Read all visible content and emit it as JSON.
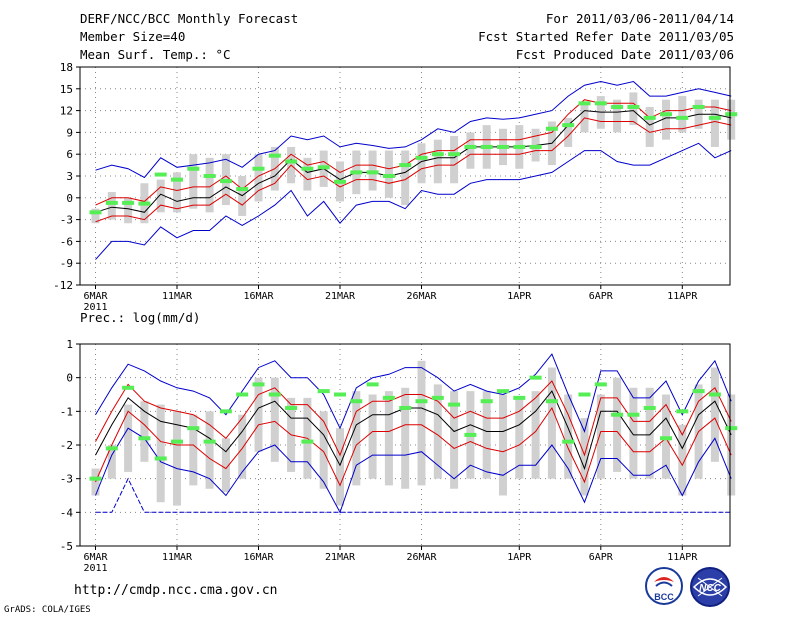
{
  "header": {
    "title": "DERF/NCC/BCC Monthly Forecast",
    "member_size": "Member Size=40",
    "variable": "Mean Surf. Temp.: °C",
    "period": "For 2011/03/06-2011/04/14",
    "start_date": "Fcst Started Refer Date 2011/03/05",
    "produced_date": "Fcst Produced Date 2011/03/06"
  },
  "footer": {
    "url": "http://cmdp.ncc.cma.gov.cn",
    "credit": "GrADS: COLA/IGES",
    "logo_left_text": "BCC",
    "logo_right_text": "NCC"
  },
  "colors": {
    "envelope": "#0000cc",
    "spread": "#dd0000",
    "mean": "#000000",
    "bar": "#d0d0d0",
    "observed": "#55ee55",
    "grid": "#888888"
  },
  "chart_data": [
    {
      "type": "box",
      "title": "Mean Surf. Temp.: °C",
      "ylim": [
        -12,
        18
      ],
      "yticks": [
        "18",
        "15",
        "12",
        "9",
        "6",
        "3",
        "0",
        "-3",
        "-6",
        "-9",
        "-12"
      ],
      "x_ticks": [
        {
          "day": 1,
          "label": "6MAR",
          "sublabel": "2011"
        },
        {
          "day": 6,
          "label": "11MAR"
        },
        {
          "day": 11,
          "label": "16MAR"
        },
        {
          "day": 16,
          "label": "21MAR"
        },
        {
          "day": 21,
          "label": "26MAR"
        },
        {
          "day": 27,
          "label": "1APR"
        },
        {
          "day": 32,
          "label": "6APR"
        },
        {
          "day": 37,
          "label": "11APR"
        }
      ],
      "days": 40,
      "max": [
        3.8,
        4.5,
        4.0,
        2.8,
        5.5,
        4.2,
        4.5,
        4.8,
        5.3,
        4.2,
        6.0,
        6.5,
        8.5,
        8.0,
        8.5,
        7.0,
        7.5,
        7.2,
        6.8,
        7.0,
        8.0,
        9.5,
        9.0,
        10.5,
        11.0,
        10.8,
        11.0,
        11.5,
        12.0,
        14.0,
        15.5,
        16.0,
        15.5,
        16.0,
        14.0,
        14.0,
        14.5,
        15.0,
        14.5,
        14.0
      ],
      "upper": [
        -1.0,
        0.0,
        0.0,
        -0.5,
        1.5,
        1.0,
        1.5,
        1.5,
        3.0,
        1.2,
        3.0,
        4.0,
        6.0,
        4.5,
        5.0,
        3.5,
        4.5,
        4.5,
        4.0,
        4.5,
        6.0,
        6.5,
        6.5,
        8.0,
        8.0,
        8.0,
        8.0,
        8.5,
        9.0,
        11.5,
        13.5,
        13.0,
        13.0,
        13.0,
        11.0,
        12.0,
        12.0,
        12.5,
        12.5,
        12.0
      ],
      "mean": [
        -2.0,
        -1.3,
        -1.5,
        -2.0,
        0.5,
        -0.5,
        0.0,
        0.0,
        1.5,
        0.3,
        2.0,
        3.0,
        5.3,
        3.5,
        4.0,
        2.5,
        3.5,
        3.5,
        3.0,
        3.5,
        5.0,
        5.5,
        5.5,
        7.0,
        7.0,
        7.0,
        7.0,
        7.2,
        7.5,
        10.0,
        12.0,
        11.8,
        11.8,
        12.0,
        10.0,
        11.0,
        11.0,
        11.5,
        11.5,
        11.0
      ],
      "lower": [
        -3.3,
        -2.5,
        -2.5,
        -3.0,
        -1.0,
        -1.5,
        -1.0,
        -1.0,
        0.5,
        -1.0,
        1.0,
        2.0,
        4.5,
        2.5,
        3.0,
        1.5,
        2.5,
        2.5,
        2.0,
        2.5,
        4.0,
        4.5,
        4.5,
        6.0,
        6.0,
        6.0,
        6.0,
        6.5,
        6.5,
        8.5,
        11.0,
        10.5,
        10.5,
        10.5,
        9.0,
        9.5,
        9.5,
        10.0,
        10.5,
        10.0
      ],
      "min": [
        -8.5,
        -6.0,
        -6.0,
        -6.5,
        -4.0,
        -5.5,
        -4.5,
        -4.5,
        -2.5,
        -3.8,
        -2.5,
        -1.0,
        1.0,
        -2.5,
        -0.5,
        -3.5,
        -1.0,
        -0.5,
        -0.5,
        -1.5,
        1.0,
        0.5,
        0.5,
        2.0,
        2.5,
        2.5,
        2.5,
        3.0,
        3.5,
        5.0,
        6.5,
        6.5,
        5.0,
        4.5,
        4.5,
        5.5,
        6.5,
        7.5,
        5.5,
        6.5
      ],
      "bar_top": [
        -1.5,
        0.8,
        0.0,
        2.0,
        2.5,
        3.5,
        6.0,
        5.5,
        6.0,
        3.0,
        6.0,
        7.0,
        7.0,
        5.5,
        6.5,
        5.0,
        6.5,
        6.5,
        6.5,
        6.5,
        7.5,
        8.0,
        8.5,
        9.0,
        10.0,
        9.5,
        10.0,
        9.5,
        10.5,
        11.0,
        13.0,
        14.0,
        13.5,
        14.5,
        12.5,
        13.5,
        14.0,
        13.5,
        13.5,
        13.5
      ],
      "bar_bottom": [
        -3.5,
        -3.0,
        -3.5,
        -3.5,
        -2.0,
        -2.0,
        -1.5,
        -2.0,
        -1.0,
        -2.5,
        -0.5,
        1.0,
        2.0,
        1.0,
        1.5,
        -0.5,
        0.5,
        1.0,
        0.0,
        -1.0,
        2.0,
        2.0,
        2.0,
        4.0,
        4.0,
        4.5,
        4.0,
        5.0,
        4.5,
        7.0,
        9.0,
        9.5,
        9.0,
        10.0,
        7.0,
        8.0,
        9.0,
        9.5,
        7.0,
        8.0
      ],
      "observed": [
        -2.0,
        -0.7,
        -0.7,
        -0.8,
        3.2,
        2.5,
        4.0,
        3.0,
        2.3,
        1.2,
        4.0,
        5.8,
        5.0,
        4.0,
        4.2,
        2.2,
        3.5,
        3.5,
        3.0,
        4.5,
        5.5,
        6.0,
        6.0,
        7.0,
        7.0,
        7.0,
        7.0,
        7.0,
        9.5,
        10.0,
        13.0,
        13.0,
        12.5,
        12.5,
        11.0,
        11.5,
        11.0,
        12.5,
        11.0,
        11.5
      ]
    },
    {
      "type": "box",
      "title": "Prec.: log(mm/d)",
      "ylim": [
        -5,
        1
      ],
      "yticks": [
        "1",
        "0",
        "-1",
        "-2",
        "-3",
        "-4",
        "-5"
      ],
      "x_ticks": [
        {
          "day": 1,
          "label": "6MAR",
          "sublabel": "2011"
        },
        {
          "day": 6,
          "label": "11MAR"
        },
        {
          "day": 11,
          "label": "16MAR"
        },
        {
          "day": 16,
          "label": "21MAR"
        },
        {
          "day": 21,
          "label": "26MAR"
        },
        {
          "day": 27,
          "label": "1APR"
        },
        {
          "day": 32,
          "label": "6APR"
        },
        {
          "day": 37,
          "label": "11APR"
        }
      ],
      "days": 40,
      "max": [
        -1.1,
        -0.3,
        0.4,
        0.2,
        -0.1,
        -0.3,
        -0.4,
        -0.6,
        -1.1,
        -0.4,
        0.3,
        0.5,
        0.0,
        0.0,
        -0.5,
        -1.5,
        -0.3,
        0.0,
        0.1,
        0.3,
        0.3,
        0.0,
        -0.4,
        -0.2,
        -0.4,
        -0.5,
        -0.3,
        0.1,
        0.7,
        -0.5,
        -1.6,
        0.2,
        0.2,
        -0.6,
        -0.6,
        -0.1,
        -1.1,
        -0.1,
        0.5,
        -0.7
      ],
      "upper": [
        -1.9,
        -1.0,
        -0.2,
        -0.7,
        -0.9,
        -1.0,
        -1.1,
        -1.4,
        -1.8,
        -1.2,
        -0.5,
        -0.3,
        -0.8,
        -0.8,
        -1.3,
        -2.3,
        -1.0,
        -0.7,
        -0.7,
        -0.5,
        -0.5,
        -0.7,
        -1.2,
        -1.0,
        -1.2,
        -1.2,
        -1.0,
        -0.6,
        -0.1,
        -1.1,
        -2.3,
        -0.6,
        -0.6,
        -1.3,
        -1.3,
        -0.8,
        -1.7,
        -0.7,
        -0.3,
        -1.3
      ],
      "mean": [
        -2.3,
        -1.4,
        -0.6,
        -1.0,
        -1.3,
        -1.4,
        -1.5,
        -1.8,
        -2.2,
        -1.6,
        -0.9,
        -0.7,
        -1.2,
        -1.2,
        -1.7,
        -2.6,
        -1.4,
        -1.1,
        -1.1,
        -0.9,
        -0.9,
        -1.1,
        -1.6,
        -1.4,
        -1.6,
        -1.6,
        -1.4,
        -1.0,
        -0.4,
        -1.5,
        -2.7,
        -1.0,
        -1.0,
        -1.7,
        -1.7,
        -1.2,
        -2.1,
        -1.1,
        -0.7,
        -1.7
      ],
      "lower": [
        -3.1,
        -2.0,
        -1.0,
        -1.4,
        -1.9,
        -2.0,
        -2.0,
        -2.4,
        -2.7,
        -2.1,
        -1.4,
        -1.3,
        -1.7,
        -1.8,
        -2.2,
        -3.2,
        -2.0,
        -1.6,
        -1.6,
        -1.4,
        -1.4,
        -1.7,
        -2.1,
        -1.9,
        -2.1,
        -2.2,
        -2.0,
        -1.6,
        -0.9,
        -2.1,
        -3.1,
        -1.6,
        -1.6,
        -2.2,
        -2.2,
        -1.8,
        -2.6,
        -1.6,
        -1.2,
        -2.3
      ],
      "min": [
        -3.5,
        -2.3,
        -1.5,
        -1.8,
        -2.5,
        -2.7,
        -2.8,
        -3.0,
        -3.5,
        -2.8,
        -2.2,
        -2.0,
        -2.5,
        -2.5,
        -3.1,
        -4.0,
        -2.6,
        -2.3,
        -2.3,
        -2.3,
        -2.2,
        -2.6,
        -3.0,
        -2.6,
        -2.8,
        -2.9,
        -2.6,
        -2.6,
        -2.0,
        -2.7,
        -3.7,
        -2.4,
        -2.4,
        -2.9,
        -2.9,
        -2.6,
        -3.5,
        -2.5,
        -1.8,
        -3.0
      ],
      "bottom_line": [
        -4.0,
        -4.0,
        -3.0,
        -4.0,
        -4.0,
        -4.0,
        -4.0,
        -4.0,
        -4.0,
        -4.0,
        -4.0,
        -4.0,
        -4.0,
        -4.0,
        -4.0,
        -4.0,
        -4.0,
        -4.0,
        -4.0,
        -4.0,
        -4.0,
        -4.0,
        -4.0,
        -4.0,
        -4.0,
        -4.0,
        -4.0,
        -4.0,
        -4.0,
        -4.0,
        -4.0,
        -4.0,
        -4.0,
        -4.0,
        -4.0,
        -4.0,
        -4.0,
        -4.0,
        -4.0,
        -4.0
      ],
      "bar_top": [
        -2.7,
        -2.0,
        -0.8,
        -0.7,
        -0.8,
        -1.0,
        -1.1,
        -1.0,
        -1.8,
        -1.1,
        0.0,
        0.0,
        -0.6,
        -0.6,
        -1.0,
        -1.5,
        -0.4,
        -0.5,
        -0.4,
        -0.3,
        0.5,
        -0.2,
        -0.4,
        -0.4,
        -0.4,
        -0.5,
        -0.6,
        -0.4,
        0.3,
        -0.5,
        -1.2,
        -0.5,
        0.0,
        -0.3,
        -0.3,
        -0.5,
        -1.4,
        -0.2,
        0.3,
        -0.5
      ],
      "bar_bottom": [
        -3.5,
        -3.0,
        -2.8,
        -2.5,
        -3.7,
        -3.8,
        -3.2,
        -3.3,
        -3.4,
        -3.0,
        -2.2,
        -2.5,
        -2.8,
        -3.0,
        -3.3,
        -3.8,
        -3.2,
        -3.0,
        -3.2,
        -3.3,
        -3.2,
        -3.0,
        -3.3,
        -3.0,
        -3.0,
        -3.5,
        -3.0,
        -3.0,
        -3.0,
        -3.0,
        -3.5,
        -3.0,
        -2.8,
        -3.0,
        -3.0,
        -3.0,
        -3.5,
        -3.0,
        -2.5,
        -3.5
      ],
      "observed": [
        -3.0,
        -2.1,
        -0.3,
        -1.8,
        -2.4,
        -1.9,
        -1.5,
        -1.9,
        -1.0,
        -0.5,
        -0.2,
        -0.5,
        -0.9,
        -1.9,
        -0.4,
        -0.5,
        -0.7,
        -0.2,
        -0.6,
        -0.9,
        -0.7,
        -0.6,
        -0.8,
        -1.7,
        -0.7,
        -0.4,
        -0.6,
        0.0,
        -0.7,
        -1.9,
        -0.5,
        -0.2,
        -1.1,
        -1.1,
        -0.9,
        -1.8,
        -1.0,
        -0.4,
        -0.5,
        -1.5
      ]
    }
  ]
}
